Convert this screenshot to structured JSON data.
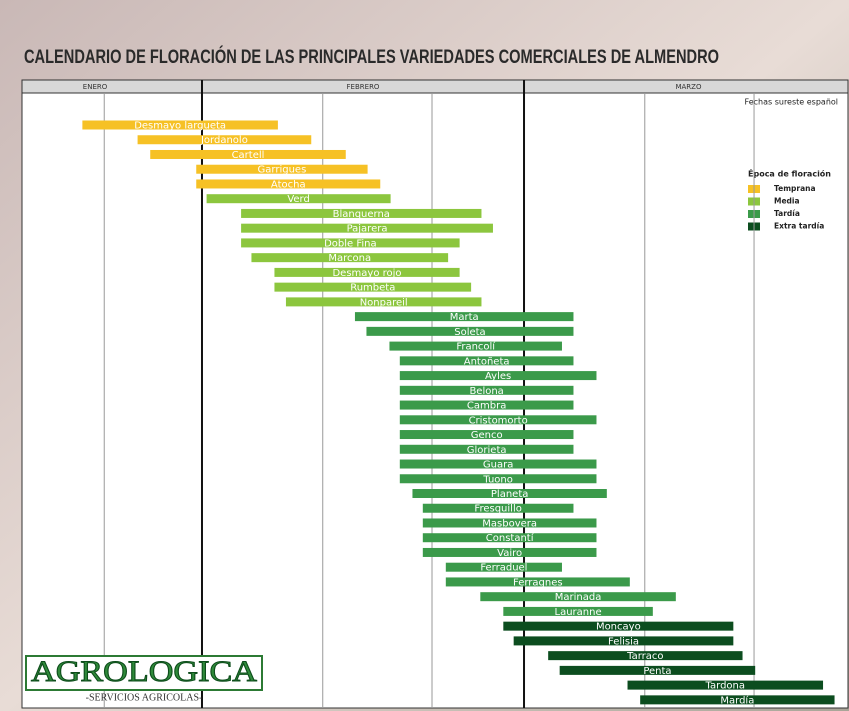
{
  "chart_data": {
    "type": "gantt",
    "title": "CALENDARIO DE FLORACIÓN DE LAS PRINCIPALES VARIEDADES COMERCIALES DE ALMENDRO",
    "note": "Fechas sureste español",
    "legend_title": "Época de floración",
    "xlim": [
      15.35,
      87.17
    ],
    "xticks": [
      {
        "value": 21.7,
        "label": "ENERO"
      },
      {
        "value": 45,
        "label": "FEBRERO"
      },
      {
        "value": 73.3,
        "label": "MARZO"
      }
    ],
    "month_bounds": [
      31,
      59
    ],
    "grid_lines": [
      22.5,
      41.5,
      51,
      69.5,
      79
    ],
    "series": [
      {
        "name": "Temprana",
        "color": "#f6c125",
        "names": [
          "Desmayo largueta",
          "Jordanolo",
          "Cartell",
          "Garrigues",
          "Atocha"
        ],
        "starts": [
          20.6,
          25.4,
          26.5,
          30.5,
          30.5
        ],
        "ends": [
          37.6,
          40.5,
          43.5,
          45.4,
          46.5
        ]
      },
      {
        "name": "Media",
        "color": "#8cc63e",
        "names": [
          "Verd",
          "Blanquerna",
          "Pajarera",
          "Doble Fina",
          "Marcona",
          "Desmayo rojo",
          "Rumbeta",
          "Nonpareil"
        ],
        "starts": [
          31.4,
          34.4,
          34.4,
          34.4,
          35.3,
          37.3,
          37.3,
          38.3
        ],
        "ends": [
          47.4,
          55.3,
          56.3,
          53.4,
          52.4,
          53.4,
          54.4,
          55.3
        ]
      },
      {
        "name": "Tardía",
        "color": "#3b9a4a",
        "names": [
          "Marta",
          "Soleta",
          "Francolí",
          "Antoñeta",
          "Ayles",
          "Belona",
          "Cambra",
          "Cristomorto",
          "Genco",
          "Glorieta",
          "Guara",
          "Tuono",
          "Planeta",
          "Fresquillo",
          "Masbovera",
          "Constantí",
          "Vairo",
          "Ferraduel",
          "Ferragnes",
          "Marinada",
          "Lauranne"
        ],
        "starts": [
          44.3,
          45.3,
          47.3,
          48.2,
          48.2,
          48.2,
          48.2,
          48.2,
          48.2,
          48.2,
          48.2,
          48.2,
          49.3,
          50.2,
          50.2,
          50.2,
          50.2,
          52.2,
          52.2,
          55.2,
          57.2
        ],
        "ends": [
          63.3,
          63.3,
          62.3,
          63.3,
          65.3,
          63.3,
          63.3,
          65.3,
          63.3,
          63.3,
          65.3,
          65.3,
          66.2,
          63.3,
          65.3,
          65.3,
          65.3,
          62.3,
          68.2,
          72.2,
          70.2
        ]
      },
      {
        "name": "Extra tardía",
        "color": "#0c4d1f",
        "names": [
          "Moncayo",
          "Felisia",
          "Tarraco",
          "Penta",
          "Tardona",
          "Mardía"
        ],
        "starts": [
          57.2,
          58.1,
          61.1,
          62.1,
          68,
          69.1
        ],
        "ends": [
          77.2,
          77.2,
          78,
          79.1,
          85,
          86
        ]
      }
    ]
  },
  "logo": {
    "name": "AGROLOGICA",
    "tagline": "-SERVICIOS AGRICOLAS-"
  }
}
